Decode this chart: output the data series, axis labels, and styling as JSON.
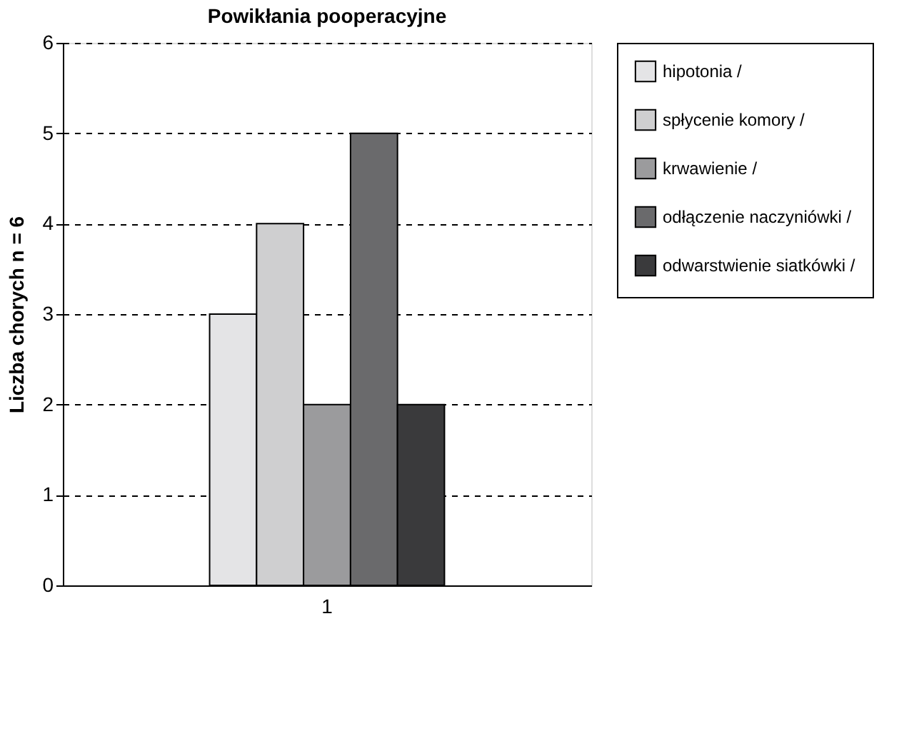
{
  "chart_data": {
    "type": "bar",
    "title": "Powikłania pooperacyjne",
    "ylabel": "Liczba chorych n = 6",
    "categories": [
      "1"
    ],
    "series": [
      {
        "name": "hipotonia /",
        "color": "#e4e4e6",
        "values": [
          3
        ]
      },
      {
        "name": "spłycenie komory /",
        "color": "#cfcfd0",
        "values": [
          4
        ]
      },
      {
        "name": "krwawienie /",
        "color": "#9b9b9d",
        "values": [
          2
        ]
      },
      {
        "name": "odłączenie naczyniówki /",
        "color": "#6a6a6c",
        "values": [
          5
        ]
      },
      {
        "name": "odwarstwienie siatkówki /",
        "color": "#3a3a3c",
        "values": [
          2
        ]
      }
    ],
    "ylim": [
      0,
      6
    ],
    "yticks": [
      0,
      1,
      2,
      3,
      4,
      5,
      6
    ],
    "grid": "y",
    "legend": "right"
  }
}
